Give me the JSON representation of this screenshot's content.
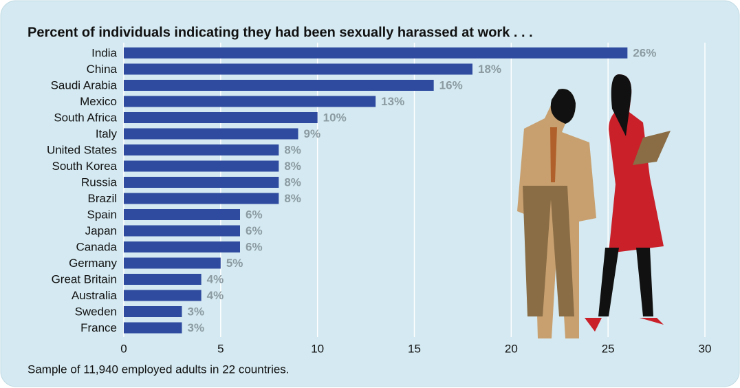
{
  "chart_data": {
    "type": "bar",
    "orientation": "horizontal",
    "title": "Percent of individuals indicating they had been sexually harassed at work . . .",
    "categories": [
      "India",
      "China",
      "Saudi Arabia",
      "Mexico",
      "South Africa",
      "Italy",
      "United States",
      "South Korea",
      "Russia",
      "Brazil",
      "Spain",
      "Japan",
      "Canada",
      "Germany",
      "Great Britain",
      "Australia",
      "Sweden",
      "France"
    ],
    "values": [
      26,
      18,
      16,
      13,
      10,
      9,
      8,
      8,
      8,
      8,
      6,
      6,
      6,
      5,
      4,
      4,
      3,
      3
    ],
    "value_labels": [
      "26%",
      "18%",
      "16%",
      "13%",
      "10%",
      "9%",
      "8%",
      "8%",
      "8%",
      "8%",
      "6%",
      "6%",
      "6%",
      "5%",
      "4%",
      "4%",
      "3%",
      "3%"
    ],
    "color": "#2e4b9f",
    "xlim": [
      0,
      30
    ],
    "xticks": [
      0,
      5,
      10,
      15,
      20,
      25,
      30
    ],
    "grid": true,
    "note": "Sample of 11,940 employed adults in 22 countries."
  }
}
